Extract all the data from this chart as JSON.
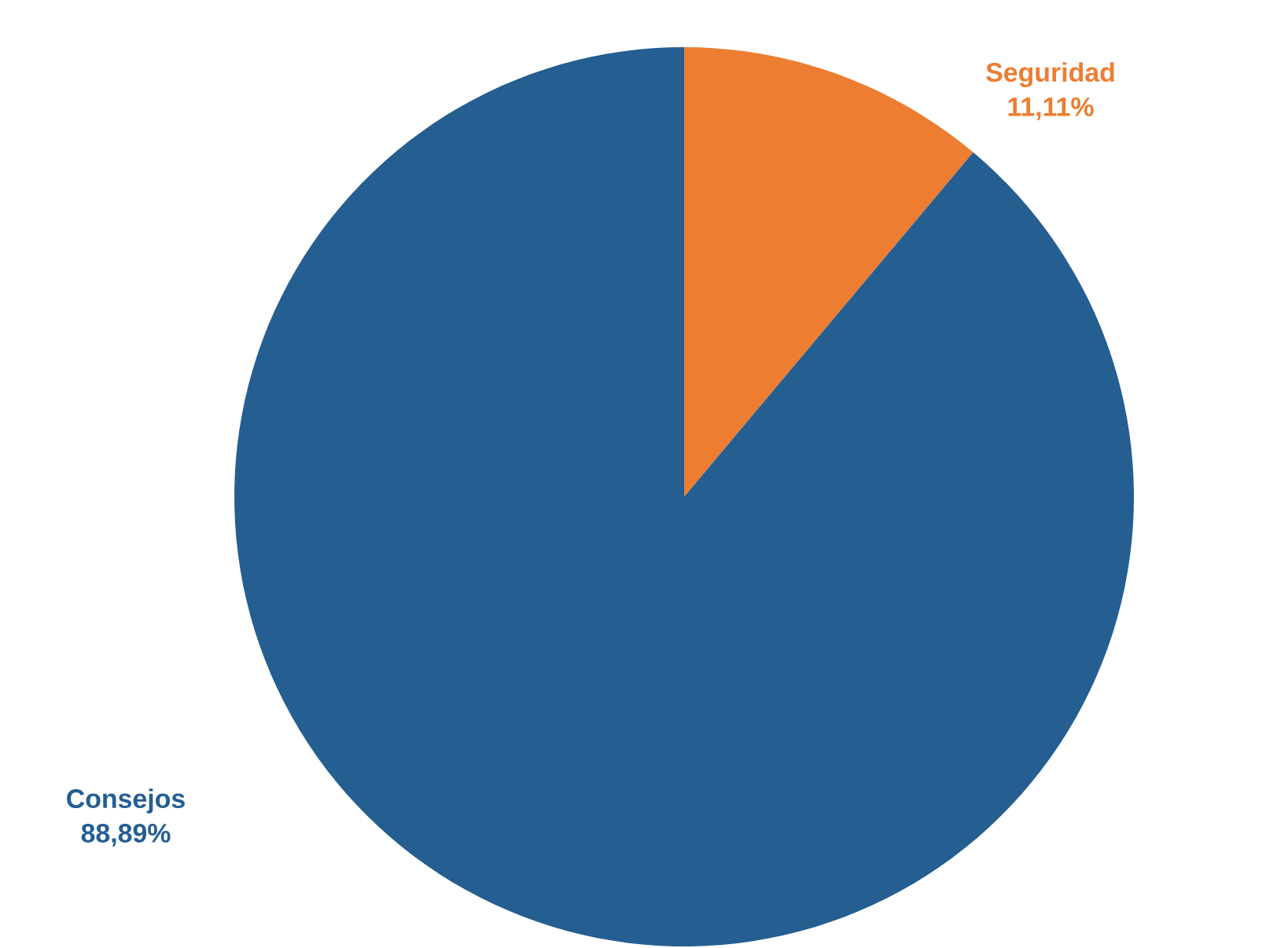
{
  "chart_data": {
    "type": "pie",
    "categories": [
      "Seguridad",
      "Consejos"
    ],
    "values": [
      11.11,
      88.89
    ],
    "colors": [
      "#ed7d31",
      "#255e91"
    ],
    "value_labels": [
      "11,11%",
      "88,89%"
    ]
  }
}
